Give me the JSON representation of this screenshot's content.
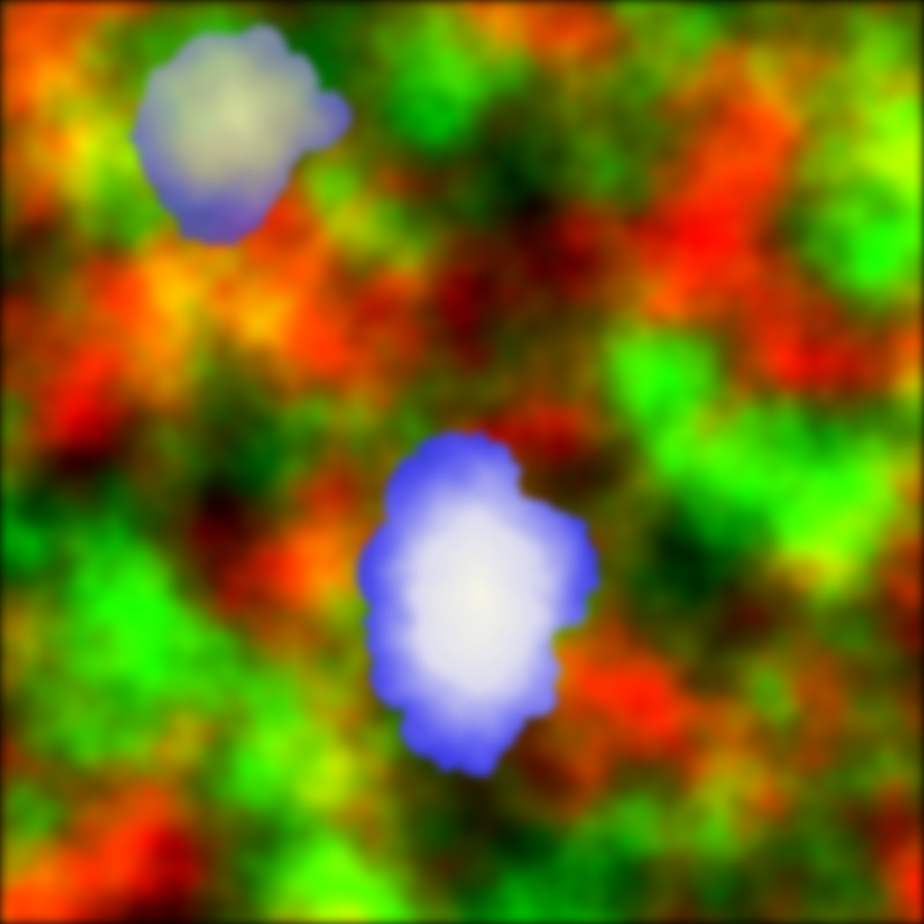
{
  "image": {
    "kind": "procedural-noise-texture",
    "colors": {
      "background_dark": "#000000",
      "noise_bright": "#ffff00",
      "noise_mid": "#8c8c00",
      "blob_edge": "#2b2bff",
      "blob_core": "#f4f4dc"
    },
    "blobs": [
      {
        "name": "upper-left-blob",
        "edge_color": "#3a3ae0",
        "core_color": "#e8e8a8"
      },
      {
        "name": "center-blob",
        "edge_color": "#2424f0",
        "core_color": "#f6f6e6"
      }
    ]
  }
}
